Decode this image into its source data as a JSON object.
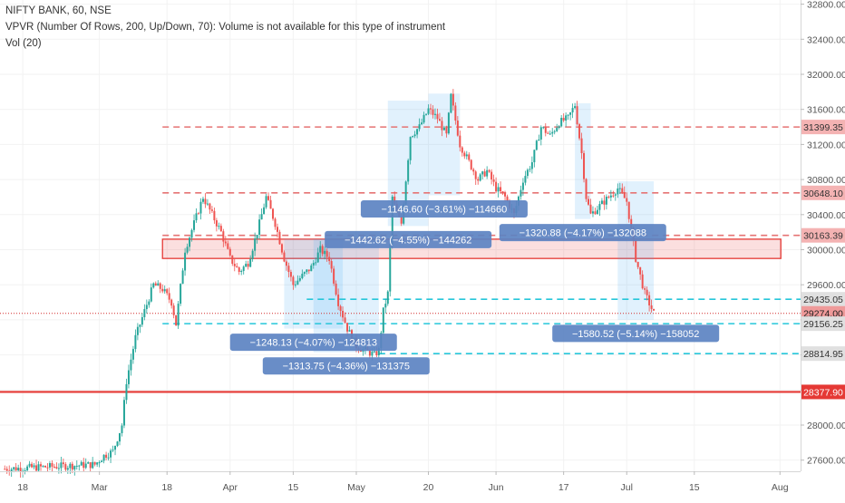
{
  "header": {
    "symbol": "NIFTY BANK, 60, NSE",
    "vpvr": "VPVR (Number Of Rows, 200, Up/Down, 70): Volume is not available for this type of instrument",
    "vol": "Vol (20)"
  },
  "chart_data": {
    "type": "candlestick",
    "y_axis": {
      "range": [
        27400,
        32800
      ],
      "ticks": [
        27600,
        28000,
        28400,
        28800,
        29200,
        29600,
        30000,
        30400,
        30800,
        31200,
        31600,
        32000,
        32400,
        32800
      ],
      "labels": [
        "27600.00",
        "28000.00",
        "28400.00",
        "28800.00",
        "29200.00",
        "29600.00",
        "30000.00",
        "30400.00",
        "30800.00",
        "31200.00",
        "31600.00",
        "32000.00",
        "32400.00",
        "32800.00"
      ]
    },
    "x_axis": {
      "labels": [
        "18",
        "Mar",
        "18",
        "Apr",
        "15",
        "May",
        "20",
        "Jun",
        "17",
        "Jul",
        "15",
        "Aug"
      ],
      "label_index": [
        8,
        42,
        72,
        100,
        128,
        156,
        188,
        218,
        248,
        276,
        306,
        344
      ]
    },
    "levels": [
      {
        "value": 31399.35,
        "label": "31399.35",
        "style": "dashed",
        "color": "#e57373"
      },
      {
        "value": 30648.1,
        "label": "30648.10",
        "style": "dashed",
        "color": "#e57373"
      },
      {
        "value": 30163.39,
        "label": "30163.39",
        "style": "dashed",
        "color": "#e57373"
      },
      {
        "value": 29435.05,
        "label": "29435.05",
        "style": "dashed",
        "color": "#26c6da"
      },
      {
        "value": 29274.0,
        "label": "29274.00",
        "style": "dotted",
        "color": "#d32f2f"
      },
      {
        "value": 29156.25,
        "label": "29156.25",
        "style": "dashed",
        "color": "#26c6da"
      },
      {
        "value": 28814.95,
        "label": "28814.95",
        "style": "dashed",
        "color": "#26c6da"
      },
      {
        "value": 28377.9,
        "label": "28377.90",
        "style": "solid",
        "color": "#e53935"
      }
    ],
    "zone": {
      "from": 29900,
      "to": 30120,
      "color": "#e53935"
    },
    "measurements": [
      {
        "text": "−1248.13 (−4.07%) −124813",
        "top": 30120,
        "bottom": 29100,
        "start": 124,
        "end": 150
      },
      {
        "text": "−1313.75 (−4.36%) −131375",
        "top": 30120,
        "bottom": 28830,
        "start": 137,
        "end": 166
      },
      {
        "text": "−1442.62 (−4.55%) −144262",
        "top": 31700,
        "bottom": 30270,
        "start": 170,
        "end": 188
      },
      {
        "text": "−1146.60 (−3.61%) −114660",
        "top": 31780,
        "bottom": 30620,
        "start": 188,
        "end": 202
      },
      {
        "text": "−1320.88 (−4.17%) −132088",
        "top": 31670,
        "bottom": 30350,
        "start": 253,
        "end": 260
      },
      {
        "text": "−1580.52 (−5.14%) −158052",
        "top": 30780,
        "bottom": 29200,
        "start": 272,
        "end": 288
      }
    ],
    "bar_count": 346,
    "series_path": [
      [
        0,
        27500
      ],
      [
        40,
        27550
      ],
      [
        44,
        27650
      ],
      [
        48,
        27700
      ],
      [
        52,
        28000
      ],
      [
        54,
        28500
      ],
      [
        58,
        29000
      ],
      [
        62,
        29300
      ],
      [
        66,
        29600
      ],
      [
        70,
        29550
      ],
      [
        74,
        29400
      ],
      [
        76,
        29150
      ],
      [
        80,
        30000
      ],
      [
        84,
        30300
      ],
      [
        88,
        30600
      ],
      [
        92,
        30400
      ],
      [
        96,
        30200
      ],
      [
        100,
        29900
      ],
      [
        104,
        29750
      ],
      [
        108,
        29850
      ],
      [
        112,
        30200
      ],
      [
        116,
        30600
      ],
      [
        120,
        30300
      ],
      [
        124,
        29900
      ],
      [
        128,
        29600
      ],
      [
        132,
        29700
      ],
      [
        136,
        29800
      ],
      [
        140,
        30000
      ],
      [
        144,
        29900
      ],
      [
        148,
        29400
      ],
      [
        152,
        29100
      ],
      [
        156,
        28900
      ],
      [
        160,
        28850
      ],
      [
        164,
        28800
      ],
      [
        166,
        28850
      ],
      [
        168,
        29300
      ],
      [
        170,
        29500
      ],
      [
        172,
        30600
      ],
      [
        174,
        30400
      ],
      [
        176,
        30300
      ],
      [
        180,
        31300
      ],
      [
        184,
        31400
      ],
      [
        188,
        31600
      ],
      [
        192,
        31500
      ],
      [
        196,
        31300
      ],
      [
        198,
        31750
      ],
      [
        202,
        31200
      ],
      [
        206,
        31000
      ],
      [
        210,
        30800
      ],
      [
        214,
        30900
      ],
      [
        218,
        30700
      ],
      [
        222,
        30600
      ],
      [
        226,
        30400
      ],
      [
        230,
        30800
      ],
      [
        234,
        31000
      ],
      [
        238,
        31400
      ],
      [
        242,
        31300
      ],
      [
        246,
        31450
      ],
      [
        250,
        31500
      ],
      [
        253,
        31650
      ],
      [
        256,
        31100
      ],
      [
        258,
        30600
      ],
      [
        260,
        30400
      ],
      [
        264,
        30500
      ],
      [
        268,
        30600
      ],
      [
        272,
        30700
      ],
      [
        276,
        30550
      ],
      [
        280,
        29900
      ],
      [
        284,
        29500
      ],
      [
        288,
        29274
      ]
    ]
  }
}
